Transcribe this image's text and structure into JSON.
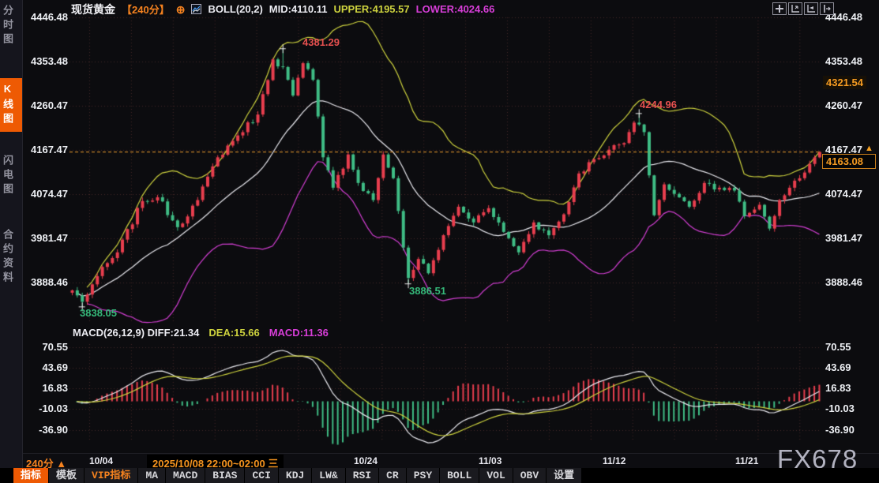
{
  "sidebar": {
    "items": [
      {
        "label": "分时图",
        "active": false
      },
      {
        "label": "K线图",
        "active": true
      },
      {
        "label": "闪电图",
        "active": false
      },
      {
        "label": "合约资料",
        "active": false
      }
    ]
  },
  "header": {
    "symbol": "现货黄金",
    "period": "【240分】",
    "target_icon": "⊕",
    "indicator": "BOLL(20,2)",
    "mid": "MID:4110.11",
    "upper": "UPPER:4195.57",
    "lower": "LOWER:4024.66"
  },
  "top_icons": [
    "move-crosshair",
    "scale-axis-up",
    "scale-axis-right",
    "shift-right"
  ],
  "y_axis": {
    "labels": [
      "4446.48",
      "4353.48",
      "4260.47",
      "4167.47",
      "4074.47",
      "3981.47",
      "3888.46"
    ]
  },
  "macd_axis": [
    "70.55",
    "43.69",
    "16.83",
    "-10.03",
    "-36.90"
  ],
  "macd_header": {
    "title": "MACD(26,12,9) DIFF:21.34",
    "dea": "DEA:15.66",
    "macd": "MACD:11.36"
  },
  "annotations": {
    "high1": "4381.29",
    "high2": "4244.96",
    "low1": "3838.05",
    "low2": "3886.51",
    "alert_level": "4321.54",
    "last_price": "4163.08",
    "arrow": "▲"
  },
  "time_axis": {
    "period": "240分 ▲",
    "session": "2025/10/08 22:00~02:00 三",
    "dates": [
      "10/04",
      "10/24",
      "11/03",
      "11/12",
      "11/21"
    ]
  },
  "watermark": "FX678",
  "bottom_toolbar": [
    "指标",
    "模板",
    "VIP指标",
    "MA",
    "MACD",
    "BIAS",
    "CCI",
    "KDJ",
    "LW&",
    "RSI",
    "CR",
    "PSY",
    "BOLL",
    "VOL",
    "OBV",
    "设置"
  ],
  "colors": {
    "up": "#e83e4e",
    "down": "#3fbd85",
    "boll_mid": "#e9e9ef",
    "boll_upper": "#cdd23e",
    "boll_lower": "#d23ed2",
    "grid": "#452828",
    "last_price_line": "#f0a030",
    "marker": "#eeeeee",
    "dif_line": "#e9e9ef",
    "dea_line": "#cdd23e"
  },
  "chart_data": {
    "type": "candlestick",
    "title": "现货黄金 240分 K线图, BOLL(20,2) 与 MACD(26,12,9)",
    "price_axis_ticks": [
      4446.48,
      4353.48,
      4260.47,
      4167.47,
      4074.47,
      3981.47,
      3888.46
    ],
    "macd_axis_ticks": [
      70.55,
      43.69,
      16.83,
      -10.03,
      -36.9
    ],
    "x_date_ticks": [
      "10/04",
      "10/24",
      "11/03",
      "11/12",
      "11/21"
    ],
    "session_highlight": "2025/10/08 22:00~02:00 三",
    "candle_count": 150,
    "close_anchors": [
      [
        0,
        3872
      ],
      [
        2,
        3848
      ],
      [
        5,
        3902
      ],
      [
        9,
        3952
      ],
      [
        14,
        4060
      ],
      [
        17,
        4068
      ],
      [
        21,
        4005
      ],
      [
        25,
        4062
      ],
      [
        29,
        4152
      ],
      [
        33,
        4198
      ],
      [
        37,
        4242
      ],
      [
        40,
        4358
      ],
      [
        42,
        4342
      ],
      [
        44,
        4282
      ],
      [
        46,
        4350
      ],
      [
        48,
        4315
      ],
      [
        50,
        4152
      ],
      [
        52,
        4088
      ],
      [
        55,
        4158
      ],
      [
        57,
        4098
      ],
      [
        60,
        4062
      ],
      [
        62,
        4158
      ],
      [
        64,
        4108
      ],
      [
        66,
        3962
      ],
      [
        67,
        3898
      ],
      [
        69,
        3938
      ],
      [
        71,
        3908
      ],
      [
        74,
        3988
      ],
      [
        77,
        4048
      ],
      [
        80,
        4015
      ],
      [
        83,
        4045
      ],
      [
        86,
        3995
      ],
      [
        89,
        3952
      ],
      [
        92,
        4015
      ],
      [
        95,
        3988
      ],
      [
        98,
        4032
      ],
      [
        101,
        4118
      ],
      [
        104,
        4148
      ],
      [
        107,
        4168
      ],
      [
        110,
        4182
      ],
      [
        112,
        4225
      ],
      [
        114,
        4205
      ],
      [
        116,
        4030
      ],
      [
        118,
        4095
      ],
      [
        120,
        4075
      ],
      [
        123,
        4048
      ],
      [
        126,
        4098
      ],
      [
        129,
        4088
      ],
      [
        132,
        4082
      ],
      [
        134,
        4028
      ],
      [
        137,
        4052
      ],
      [
        139,
        4002
      ],
      [
        141,
        4062
      ],
      [
        143,
        4088
      ],
      [
        145,
        4108
      ],
      [
        147,
        4138
      ],
      [
        149,
        4163.08
      ]
    ],
    "marked_points": [
      {
        "name": "swing-low-1",
        "index": 2,
        "price": 3838.05,
        "kind": "low"
      },
      {
        "name": "swing-high-1",
        "index": 42,
        "price": 4381.29,
        "kind": "high"
      },
      {
        "name": "swing-low-2",
        "index": 67,
        "price": 3886.51,
        "kind": "low"
      },
      {
        "name": "swing-high-2",
        "index": 113,
        "price": 4244.96,
        "kind": "high"
      }
    ],
    "last_price": 4163.08,
    "alert_level": 4321.54,
    "boll": {
      "period": 20,
      "mult": 2,
      "mid": 4110.11,
      "upper": 4195.57,
      "lower": 4024.66
    },
    "macd": {
      "fast": 12,
      "slow": 26,
      "signal": 9,
      "diff": 21.34,
      "dea": 15.66,
      "macd": 11.36
    },
    "legend": {
      "boll_upper_color": "yellow",
      "boll_mid_color": "white",
      "boll_lower_color": "magenta",
      "up_candle": "red",
      "down_candle": "green",
      "macd_dif_color": "white",
      "macd_dea_color": "yellow",
      "histogram_positive": "red",
      "histogram_negative": "green"
    }
  }
}
